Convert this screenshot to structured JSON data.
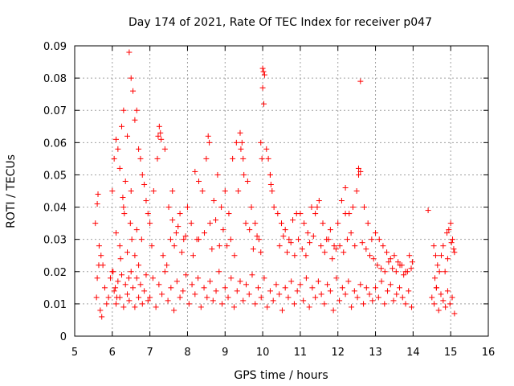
{
  "chart_data": {
    "type": "scatter",
    "title": "Day 174 of 2021, Rate Of TEC Index for receiver p047",
    "xlabel": "GPS time / hours",
    "ylabel": "ROTI / TECUs",
    "xlim": [
      5,
      16
    ],
    "ylim": [
      0,
      0.09
    ],
    "x_ticks": [
      5,
      6,
      7,
      8,
      9,
      10,
      11,
      12,
      13,
      14,
      15,
      16
    ],
    "x_tick_labels": [
      "5",
      "6",
      "7",
      "8",
      "9",
      "10",
      "11",
      "12",
      "13",
      "14",
      "15",
      "16"
    ],
    "y_ticks": [
      0,
      0.01,
      0.02,
      0.03,
      0.04,
      0.05,
      0.06,
      0.07,
      0.08,
      0.09
    ],
    "y_tick_labels": [
      "0",
      "0.01",
      "0.02",
      "0.03",
      "0.04",
      "0.05",
      "0.06",
      "0.07",
      "0.08",
      "0.09"
    ],
    "grid": true,
    "marker": "+",
    "marker_color": "#ff0000",
    "series": [
      {
        "name": "ROTI",
        "x": [
          5.55,
          5.6,
          5.62,
          5.65,
          5.7,
          5.58,
          5.68,
          5.72,
          5.6,
          5.64,
          6.0,
          6.05,
          6.1,
          6.15,
          6.2,
          6.25,
          6.3,
          6.35,
          6.4,
          6.45,
          6.5,
          6.55,
          6.6,
          6.65,
          6.7,
          6.75,
          6.8,
          6.85,
          6.9,
          6.95,
          6.1,
          6.2,
          6.3,
          6.48,
          6.5,
          6.52,
          6.6,
          6.65,
          6.28,
          6.32,
          6.02,
          6.08,
          6.4,
          6.44,
          6.7,
          6.78,
          6.12,
          6.22,
          7.0,
          7.1,
          7.2,
          7.25,
          7.3,
          7.4,
          7.5,
          7.6,
          7.7,
          7.8,
          7.9,
          7.22,
          7.28,
          7.6,
          7.05,
          7.35,
          7.45,
          7.55,
          7.65,
          7.75,
          7.85,
          7.95,
          8.0,
          8.1,
          8.2,
          8.3,
          8.4,
          8.5,
          8.55,
          8.6,
          8.7,
          8.8,
          8.9,
          8.58,
          8.3,
          8.85,
          8.15,
          8.25,
          8.45,
          8.65,
          8.75,
          8.95,
          9.0,
          9.1,
          9.2,
          9.3,
          9.4,
          9.45,
          9.5,
          9.6,
          9.7,
          9.8,
          9.9,
          9.42,
          9.48,
          9.35,
          9.55,
          9.05,
          9.15,
          9.25,
          9.65,
          9.75,
          9.85,
          9.95,
          9.95,
          10.0,
          10.02,
          10.05,
          10.1,
          10.15,
          10.2,
          10.25,
          10.3,
          10.4,
          10.5,
          10.6,
          10.7,
          10.8,
          10.9,
          10.0,
          10.03,
          9.98,
          10.2,
          10.22,
          10.45,
          10.55,
          10.65,
          10.75,
          10.85,
          10.95,
          11.0,
          11.1,
          11.2,
          11.3,
          11.4,
          11.5,
          11.6,
          11.7,
          11.8,
          11.9,
          11.45,
          11.05,
          11.15,
          11.25,
          11.35,
          11.55,
          11.65,
          11.75,
          11.85,
          11.95,
          12.0,
          12.1,
          12.2,
          12.3,
          12.4,
          12.5,
          12.55,
          12.6,
          12.7,
          12.8,
          12.9,
          12.55,
          12.6,
          12.2,
          12.05,
          12.15,
          12.25,
          12.35,
          12.45,
          12.65,
          12.75,
          12.85,
          12.95,
          13.0,
          13.1,
          13.2,
          13.3,
          13.4,
          13.5,
          13.6,
          13.7,
          13.8,
          13.9,
          13.98,
          13.05,
          13.15,
          13.25,
          13.35,
          13.45,
          13.55,
          13.65,
          13.75,
          13.85,
          13.95,
          14.4,
          14.55,
          14.6,
          14.65,
          14.7,
          14.75,
          14.8,
          14.9,
          14.95,
          15.0,
          15.05,
          15.1,
          14.58,
          14.62,
          14.85,
          14.92,
          15.02,
          15.08,
          5.75,
          5.8,
          5.85,
          5.9,
          5.95,
          6.0,
          6.05,
          6.1,
          6.15,
          6.2,
          6.25,
          6.3,
          6.35,
          6.4,
          6.45,
          6.5,
          6.55,
          6.6,
          6.65,
          6.7,
          6.75,
          6.8,
          6.85,
          6.9,
          6.95,
          7.0,
          7.08,
          7.16,
          7.24,
          7.32,
          7.4,
          7.48,
          7.56,
          7.64,
          7.72,
          7.8,
          7.88,
          7.96,
          8.04,
          8.12,
          8.2,
          8.28,
          8.36,
          8.44,
          8.52,
          8.6,
          8.68,
          8.76,
          8.84,
          8.92,
          9.0,
          9.08,
          9.16,
          9.24,
          9.32,
          9.4,
          9.48,
          9.56,
          9.64,
          9.72,
          9.8,
          9.88,
          9.96,
          10.04,
          10.12,
          10.2,
          10.28,
          10.36,
          10.44,
          10.52,
          10.6,
          10.68,
          10.76,
          10.84,
          10.92,
          11.0,
          11.08,
          11.16,
          11.24,
          11.32,
          11.4,
          11.48,
          11.56,
          11.64,
          11.72,
          11.8,
          11.88,
          11.96,
          12.04,
          12.12,
          12.2,
          12.28,
          12.36,
          12.44,
          12.52,
          12.6,
          12.68,
          12.76,
          12.84,
          12.92,
          13.0,
          13.08,
          13.16,
          13.24,
          13.32,
          13.4,
          13.48,
          13.56,
          13.64,
          13.72,
          13.8,
          13.88,
          13.96,
          14.5,
          14.56,
          14.62,
          14.68,
          14.74,
          14.8,
          14.86,
          14.92,
          14.98,
          15.04,
          15.1
        ],
        "y": [
          0.035,
          0.041,
          0.044,
          0.028,
          0.025,
          0.012,
          0.008,
          0.006,
          0.018,
          0.022,
          0.045,
          0.055,
          0.061,
          0.058,
          0.052,
          0.065,
          0.07,
          0.048,
          0.062,
          0.088,
          0.08,
          0.076,
          0.067,
          0.07,
          0.058,
          0.055,
          0.05,
          0.047,
          0.042,
          0.038,
          0.032,
          0.028,
          0.04,
          0.035,
          0.045,
          0.03,
          0.025,
          0.033,
          0.043,
          0.038,
          0.02,
          0.015,
          0.026,
          0.018,
          0.022,
          0.03,
          0.012,
          0.024,
          0.035,
          0.045,
          0.055,
          0.065,
          0.061,
          0.058,
          0.04,
          0.036,
          0.032,
          0.038,
          0.03,
          0.062,
          0.063,
          0.045,
          0.028,
          0.025,
          0.022,
          0.03,
          0.028,
          0.034,
          0.026,
          0.031,
          0.04,
          0.035,
          0.051,
          0.048,
          0.045,
          0.055,
          0.062,
          0.035,
          0.042,
          0.05,
          0.04,
          0.06,
          0.03,
          0.028,
          0.025,
          0.03,
          0.032,
          0.027,
          0.036,
          0.033,
          0.045,
          0.038,
          0.055,
          0.06,
          0.063,
          0.06,
          0.05,
          0.048,
          0.04,
          0.035,
          0.03,
          0.058,
          0.055,
          0.045,
          0.035,
          0.028,
          0.03,
          0.025,
          0.033,
          0.027,
          0.031,
          0.026,
          0.06,
          0.083,
          0.082,
          0.081,
          0.058,
          0.055,
          0.05,
          0.045,
          0.04,
          0.038,
          0.035,
          0.033,
          0.03,
          0.036,
          0.038,
          0.077,
          0.072,
          0.055,
          0.05,
          0.047,
          0.028,
          0.031,
          0.026,
          0.029,
          0.025,
          0.03,
          0.038,
          0.035,
          0.032,
          0.04,
          0.038,
          0.042,
          0.035,
          0.03,
          0.033,
          0.028,
          0.04,
          0.027,
          0.025,
          0.029,
          0.031,
          0.028,
          0.026,
          0.03,
          0.024,
          0.027,
          0.035,
          0.042,
          0.046,
          0.038,
          0.04,
          0.045,
          0.05,
          0.079,
          0.04,
          0.035,
          0.03,
          0.052,
          0.051,
          0.038,
          0.028,
          0.026,
          0.03,
          0.032,
          0.028,
          0.029,
          0.027,
          0.025,
          0.024,
          0.032,
          0.03,
          0.028,
          0.026,
          0.024,
          0.025,
          0.023,
          0.022,
          0.02,
          0.025,
          0.023,
          0.022,
          0.021,
          0.02,
          0.023,
          0.021,
          0.02,
          0.022,
          0.019,
          0.02,
          0.021,
          0.039,
          0.028,
          0.025,
          0.022,
          0.02,
          0.025,
          0.028,
          0.032,
          0.033,
          0.035,
          0.03,
          0.026,
          0.018,
          0.015,
          0.02,
          0.024,
          0.029,
          0.027,
          0.022,
          0.015,
          0.01,
          0.012,
          0.018,
          0.02,
          0.014,
          0.01,
          0.017,
          0.012,
          0.019,
          0.009,
          0.016,
          0.013,
          0.011,
          0.02,
          0.015,
          0.009,
          0.018,
          0.012,
          0.016,
          0.01,
          0.014,
          0.019,
          0.011,
          0.012,
          0.018,
          0.009,
          0.016,
          0.013,
          0.02,
          0.011,
          0.015,
          0.008,
          0.017,
          0.012,
          0.014,
          0.019,
          0.01,
          0.016,
          0.013,
          0.018,
          0.009,
          0.015,
          0.012,
          0.017,
          0.011,
          0.014,
          0.02,
          0.01,
          0.015,
          0.012,
          0.018,
          0.009,
          0.014,
          0.017,
          0.011,
          0.016,
          0.013,
          0.019,
          0.01,
          0.015,
          0.012,
          0.018,
          0.009,
          0.014,
          0.011,
          0.016,
          0.013,
          0.008,
          0.015,
          0.012,
          0.017,
          0.01,
          0.014,
          0.016,
          0.011,
          0.018,
          0.009,
          0.015,
          0.012,
          0.017,
          0.013,
          0.01,
          0.016,
          0.014,
          0.008,
          0.018,
          0.011,
          0.015,
          0.013,
          0.017,
          0.009,
          0.014,
          0.012,
          0.016,
          0.01,
          0.015,
          0.013,
          0.011,
          0.015,
          0.012,
          0.017,
          0.01,
          0.014,
          0.016,
          0.011,
          0.013,
          0.015,
          0.012,
          0.01,
          0.014,
          0.009,
          0.012,
          0.01,
          0.015,
          0.008,
          0.013,
          0.011,
          0.009,
          0.014,
          0.01,
          0.012,
          0.007
        ]
      }
    ]
  }
}
